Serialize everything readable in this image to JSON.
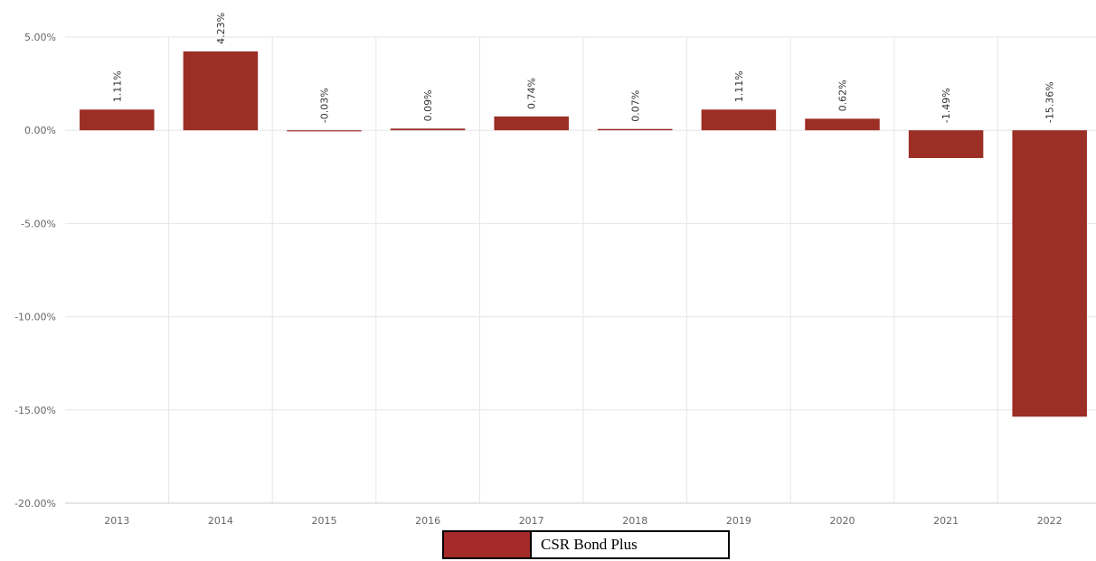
{
  "chart_data": {
    "type": "bar",
    "categories": [
      "2013",
      "2014",
      "2015",
      "2016",
      "2017",
      "2018",
      "2019",
      "2020",
      "2021",
      "2022"
    ],
    "series": [
      {
        "name": "CSR Bond Plus",
        "values": [
          1.11,
          4.23,
          -0.03,
          0.09,
          0.74,
          0.07,
          1.11,
          0.62,
          -1.49,
          -15.36
        ],
        "labels": [
          "1.11%",
          "4.23%",
          "-0.03%",
          "0.09%",
          "0.74%",
          "0.07%",
          "1.11%",
          "0.62%",
          "-1.49%",
          "-15.36%"
        ],
        "color": "#9b2e25"
      }
    ],
    "yticks": [
      5,
      0,
      -5,
      -10,
      -15,
      -20
    ],
    "ytick_labels": [
      "5.00%",
      "0.00%",
      "-5.00%",
      "-10.00%",
      "-15.00%",
      "-20.00%"
    ],
    "ylim": [
      -20,
      5
    ],
    "grid": true,
    "legend_position": "bottom-center"
  },
  "legend": {
    "label": "CSR Bond Plus",
    "swatch_color": "#a52a2a"
  }
}
